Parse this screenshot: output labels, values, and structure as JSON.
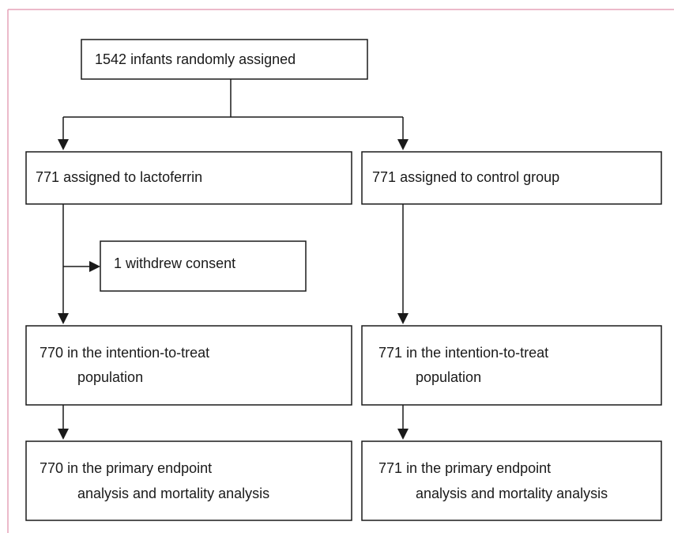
{
  "nodes": [
    {
      "count": "1542",
      "lines": [
        "infants randomly assigned"
      ]
    },
    {
      "count": "771",
      "lines": [
        "assigned to lactoferrin"
      ]
    },
    {
      "count": "771",
      "lines": [
        "assigned to control group"
      ]
    },
    {
      "count": "1",
      "lines": [
        "withdrew consent"
      ]
    },
    {
      "count": "770",
      "lines": [
        "in the intention-to-treat",
        "population"
      ]
    },
    {
      "count": "771",
      "lines": [
        "in the intention-to-treat",
        "population"
      ]
    },
    {
      "count": "770",
      "lines": [
        "in the primary endpoint",
        "analysis and mortality analysis"
      ]
    },
    {
      "count": "771",
      "lines": [
        "in the primary endpoint",
        "analysis and mortality analysis"
      ]
    }
  ]
}
